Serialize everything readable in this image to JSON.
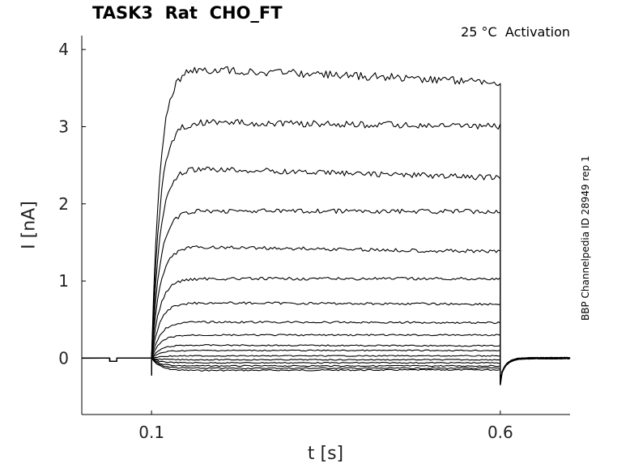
{
  "title": "TASK3  Rat  CHO_FT",
  "annotation": "25 °C  Activation",
  "side_label": "BBP Channelpedia ID 28949 rep 1",
  "chart_data": {
    "type": "line",
    "title": "TASK3  Rat  CHO_FT",
    "xlabel": "t [s]",
    "ylabel": "I [nA]",
    "xlim": [
      -0.0,
      0.7
    ],
    "ylim": [
      -0.73,
      4.18
    ],
    "xticks": [
      0.1,
      0.6
    ],
    "xtick_labels": [
      "0.1",
      "0.6"
    ],
    "yticks": [
      0,
      1,
      2,
      3,
      4
    ],
    "ytick_labels": [
      "0",
      "1",
      "2",
      "3",
      "4"
    ],
    "grid": false,
    "legend": "none",
    "line_color": "#000000",
    "stimulus": {
      "on": 0.1,
      "off": 0.6
    },
    "series": [
      {
        "values": [
          -0.16,
          -0.15
        ]
      },
      {
        "values": [
          -0.13,
          -0.13
        ]
      },
      {
        "values": [
          -0.1,
          -0.1
        ]
      },
      {
        "values": [
          -0.06,
          -0.06
        ]
      },
      {
        "values": [
          -0.02,
          -0.02
        ]
      },
      {
        "values": [
          0.03,
          0.03
        ]
      },
      {
        "values": [
          0.1,
          0.1
        ]
      },
      {
        "values": [
          0.17,
          0.16
        ]
      },
      {
        "values": [
          0.3,
          0.3
        ]
      },
      {
        "values": [
          0.47,
          0.46
        ]
      },
      {
        "values": [
          0.72,
          0.7
        ]
      },
      {
        "values": [
          1.03,
          1.03
        ]
      },
      {
        "values": [
          1.45,
          1.38
        ]
      },
      {
        "values": [
          1.91,
          1.9
        ]
      },
      {
        "values": [
          2.47,
          2.34
        ]
      },
      {
        "values": [
          3.07,
          3.0
        ]
      },
      {
        "values": [
          3.77,
          3.58
        ]
      }
    ]
  }
}
